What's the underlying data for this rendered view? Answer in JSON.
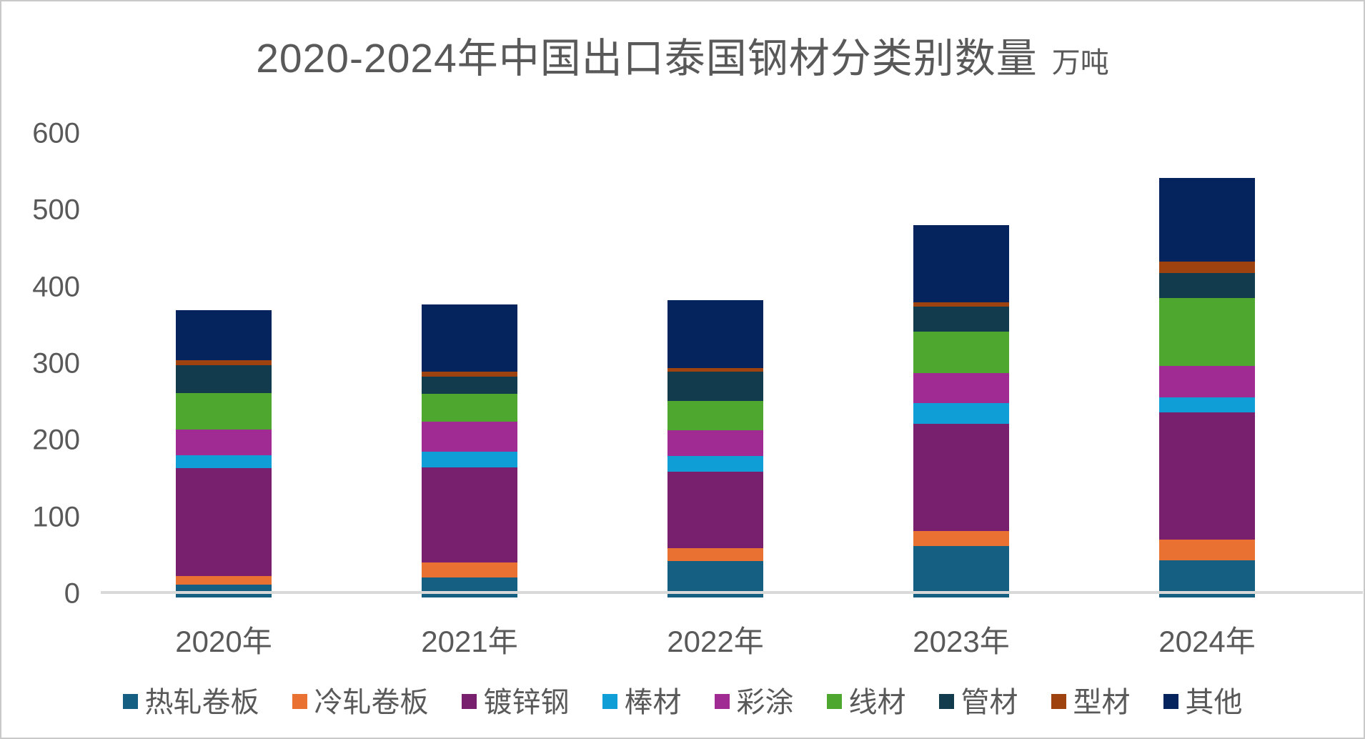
{
  "title": {
    "main": "2020-2024年中国出口泰国钢材分类别数量",
    "unit": "万吨"
  },
  "chart_data": {
    "type": "bar",
    "stacked": true,
    "title": "2020-2024年中国出口泰国钢材分类别数量",
    "unit_label": "万吨",
    "categories": [
      "2020年",
      "2021年",
      "2022年",
      "2023年",
      "2024年"
    ],
    "series": [
      {
        "name": "热轧卷板",
        "color": "#156082",
        "values": [
          7,
          16,
          37,
          57,
          38
        ]
      },
      {
        "name": "冷轧卷板",
        "color": "#E97132",
        "values": [
          11,
          19,
          17,
          19,
          27
        ]
      },
      {
        "name": "镀锌钢",
        "color": "#78206E",
        "values": [
          140,
          124,
          100,
          140,
          166
        ]
      },
      {
        "name": "棒材",
        "color": "#0F9ED5",
        "values": [
          17,
          21,
          20,
          27,
          20
        ]
      },
      {
        "name": "彩涂",
        "color": "#A02B93",
        "values": [
          34,
          39,
          34,
          39,
          41
        ]
      },
      {
        "name": "线材",
        "color": "#4EA72E",
        "values": [
          47,
          36,
          38,
          54,
          88
        ]
      },
      {
        "name": "管材",
        "color": "#123C4D",
        "values": [
          37,
          23,
          38,
          33,
          33
        ]
      },
      {
        "name": "型材",
        "color": "#9E4310",
        "values": [
          6,
          6,
          5,
          6,
          15
        ]
      },
      {
        "name": "其他",
        "color": "#05235C",
        "values": [
          65,
          88,
          88,
          100,
          109
        ]
      }
    ],
    "totals": [
      364,
      372,
      377,
      475,
      537
    ],
    "y_ticks": [
      0,
      100,
      200,
      300,
      400,
      500,
      600
    ],
    "ylim": [
      0,
      600
    ],
    "grid": false,
    "legend_position": "bottom",
    "axis_line_color": "#D9D9D9",
    "text_color": "#595959"
  }
}
